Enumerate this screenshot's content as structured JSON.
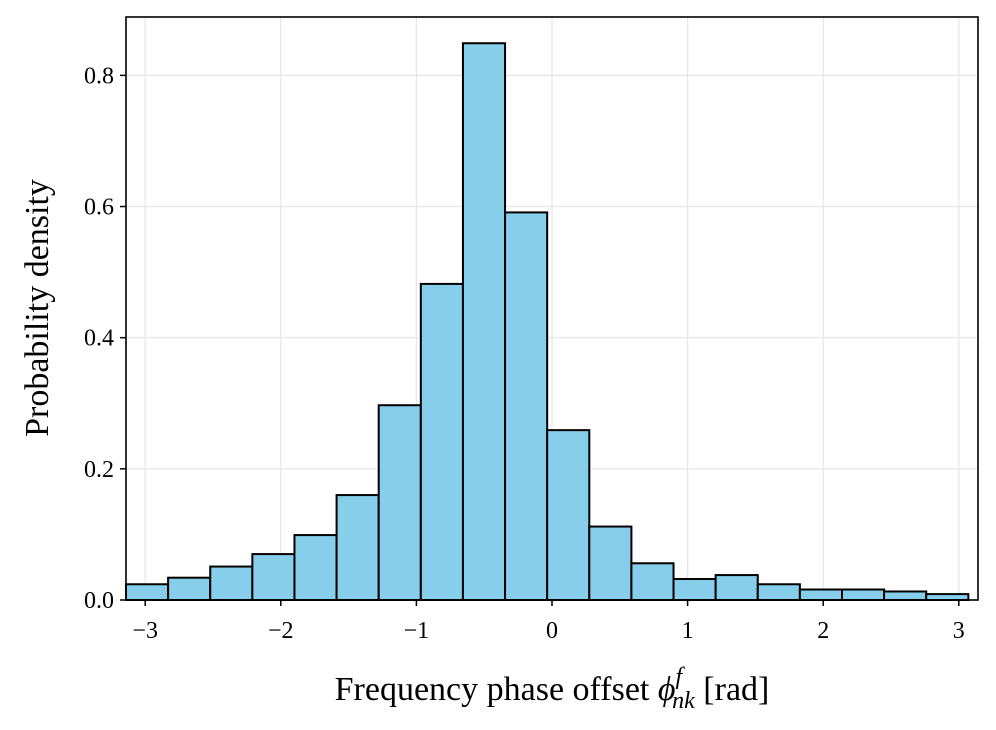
{
  "chart_data": {
    "type": "bar",
    "title": "",
    "xlabel_parts": {
      "prefix": "Frequency phase offset ",
      "symbol": "ϕ",
      "superscript": "f",
      "subscript": "nk",
      "suffix": " [rad]"
    },
    "ylabel": "Probability density",
    "xlim": [
      -3.14159,
      3.14159
    ],
    "ylim": [
      0,
      0.889
    ],
    "xticks": [
      {
        "value": -3,
        "label": "−3"
      },
      {
        "value": -2,
        "label": "−2"
      },
      {
        "value": -1,
        "label": "−1"
      },
      {
        "value": 0,
        "label": "0"
      },
      {
        "value": 1,
        "label": "1"
      },
      {
        "value": 2,
        "label": "2"
      },
      {
        "value": 3,
        "label": "3"
      }
    ],
    "yticks": [
      {
        "value": 0.0,
        "label": "0.0"
      },
      {
        "value": 0.2,
        "label": "0.2"
      },
      {
        "value": 0.4,
        "label": "0.4"
      },
      {
        "value": 0.6,
        "label": "0.6"
      },
      {
        "value": 0.8,
        "label": "0.8"
      }
    ],
    "bin_edges": [
      -3.14159,
      -2.83099,
      -2.52039,
      -2.20979,
      -1.89919,
      -1.58859,
      -1.27799,
      -0.96739,
      -0.65679,
      -0.34619,
      -0.03559,
      0.27501,
      0.58561,
      0.89621,
      1.20681,
      1.51741,
      1.82801,
      2.13861,
      2.44921,
      2.75981,
      3.07041
    ],
    "values": [
      0.024,
      0.034,
      0.051,
      0.07,
      0.099,
      0.16,
      0.297,
      0.482,
      0.849,
      0.591,
      0.259,
      0.112,
      0.056,
      0.032,
      0.038,
      0.024,
      0.016,
      0.016,
      0.013,
      0.009
    ],
    "grid": true,
    "colors": {
      "bar_fill": "#87ceeb",
      "bar_edge": "#000000",
      "grid": "#e6e6e6",
      "axis": "#000000"
    }
  }
}
